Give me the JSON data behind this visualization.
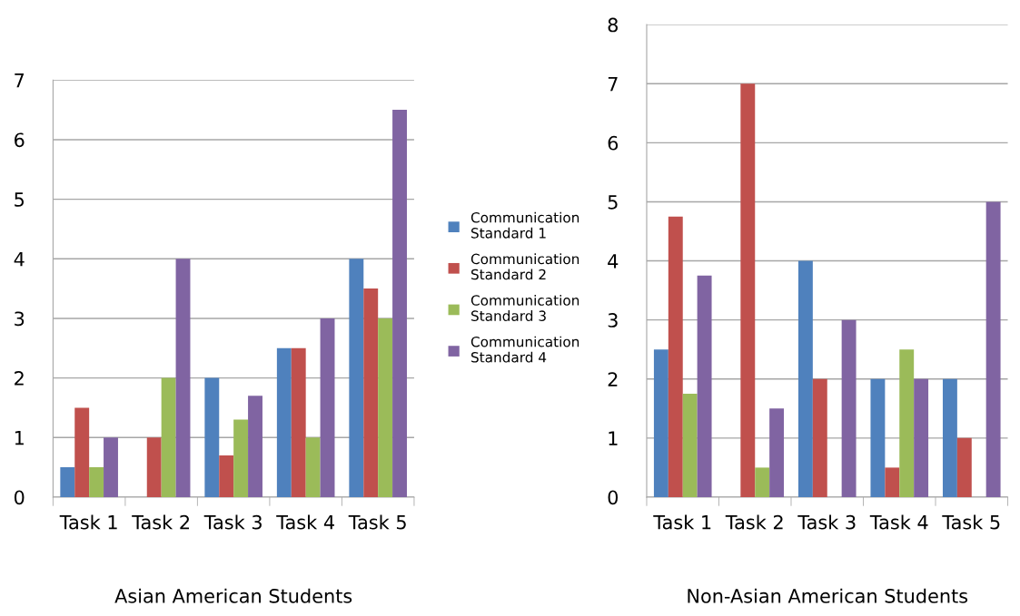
{
  "chart_data": [
    {
      "type": "bar",
      "title": "Asian American Students",
      "categories": [
        "Task 1",
        "Task 2",
        "Task 3",
        "Task 4",
        "Task 5"
      ],
      "ylim": [
        0,
        7
      ],
      "yticks": [
        0,
        1,
        2,
        3,
        4,
        5,
        6,
        7
      ],
      "grid": "y",
      "legend": "right",
      "series": [
        {
          "name": "Communication Standard 1",
          "color": "#4f81bd",
          "values": [
            0.5,
            0,
            2,
            2.5,
            4
          ]
        },
        {
          "name": "Communication Standard 2",
          "color": "#c0504d",
          "values": [
            1.5,
            1,
            0.7,
            2.5,
            3.5
          ]
        },
        {
          "name": "Communication Standard 3",
          "color": "#9bbb59",
          "values": [
            0.5,
            2,
            1.3,
            1,
            3
          ]
        },
        {
          "name": "Communication Standard 4",
          "color": "#8064a2",
          "values": [
            1,
            4,
            1.7,
            3,
            6.5
          ]
        }
      ]
    },
    {
      "type": "bar",
      "title": "Non-Asian American Students",
      "categories": [
        "Task 1",
        "Task 2",
        "Task 3",
        "Task 4",
        "Task 5"
      ],
      "ylim": [
        0,
        8
      ],
      "yticks": [
        0,
        1,
        2,
        3,
        4,
        5,
        6,
        7,
        8
      ],
      "grid": "y",
      "series": [
        {
          "color": "#4f81bd",
          "values": [
            2.5,
            0,
            4,
            2,
            2
          ]
        },
        {
          "color": "#c0504d",
          "values": [
            4.75,
            7,
            2,
            0.5,
            1
          ]
        },
        {
          "color": "#9bbb59",
          "values": [
            1.75,
            0.5,
            0,
            2.5,
            0
          ]
        },
        {
          "color": "#8064a2",
          "values": [
            3.75,
            1.5,
            3,
            2,
            5
          ]
        }
      ]
    }
  ]
}
